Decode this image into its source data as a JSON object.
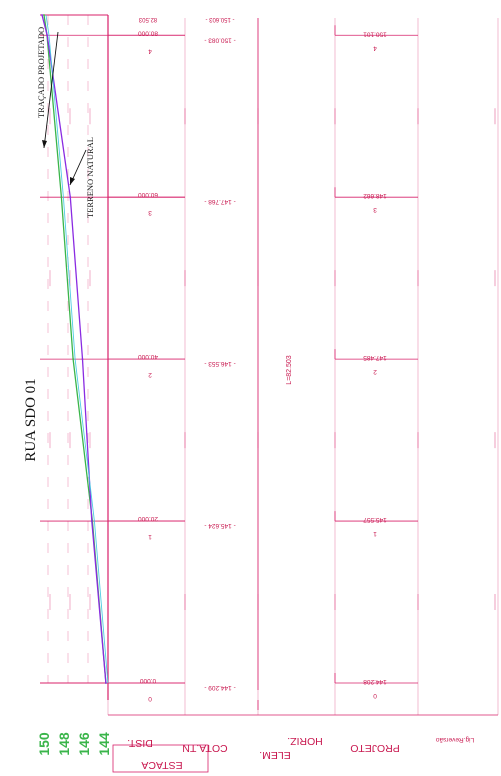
{
  "title": "RUA SDO 01",
  "annotations": {
    "designed": "TRAÇADO PROJETADO",
    "natural": "TERRENO NATURAL"
  },
  "colors": {
    "grid": "#d8206a",
    "designed_line": "#3ab54a",
    "natural_line": "#8a2be2",
    "extra_line": "#3cc8e0",
    "axis_label": "#3ab54a",
    "header_text": "#c8184f",
    "ink": "#111111"
  },
  "row_headers": [
    {
      "label": "ESTACA"
    },
    {
      "label": "DIST."
    },
    {
      "label": "COTA.TN"
    },
    {
      "label": "ELEM. HORIZ."
    },
    {
      "label": "PROJETO"
    }
  ],
  "small_note": "Lig.Reversão",
  "horizontal_element": "L=82.503",
  "stations": [
    {
      "estaca": "0",
      "dist": "0.000",
      "cota_tn": "144.209",
      "projeto_station": "0",
      "projeto_elev": "144.208"
    },
    {
      "estaca": "1",
      "dist": "20.000",
      "cota_tn": "145.624",
      "projeto_station": "1",
      "projeto_elev": "145.557"
    },
    {
      "estaca": "2",
      "dist": "40.000",
      "cota_tn": "146.553",
      "projeto_station": "2",
      "projeto_elev": "147.485"
    },
    {
      "estaca": "3",
      "dist": "60.000",
      "cota_tn": "147.768",
      "projeto_station": "3",
      "projeto_elev": "148.662"
    },
    {
      "estaca": "4",
      "dist": "80.000",
      "cota_tn": "150.083",
      "projeto_station": "4",
      "projeto_elev": "150.101"
    }
  ],
  "end_station": {
    "dist": "82.503",
    "cota_tn": "150.603"
  },
  "axis": {
    "ticks": [
      "150",
      "148",
      "146",
      "144"
    ]
  },
  "chart_data": {
    "type": "line",
    "xlabel": "",
    "ylabel": "",
    "ylim": [
      144,
      150
    ],
    "x": [
      0,
      20,
      40,
      60,
      80,
      82.503
    ],
    "series": [
      {
        "name": "TRAÇADO PROJETADO",
        "values": [
          144.208,
          145.557,
          147.485,
          148.662,
          150.101,
          150.4
        ]
      },
      {
        "name": "TERRENO NATURAL",
        "values": [
          144.209,
          145.624,
          146.553,
          147.768,
          150.083,
          150.603
        ]
      }
    ]
  }
}
